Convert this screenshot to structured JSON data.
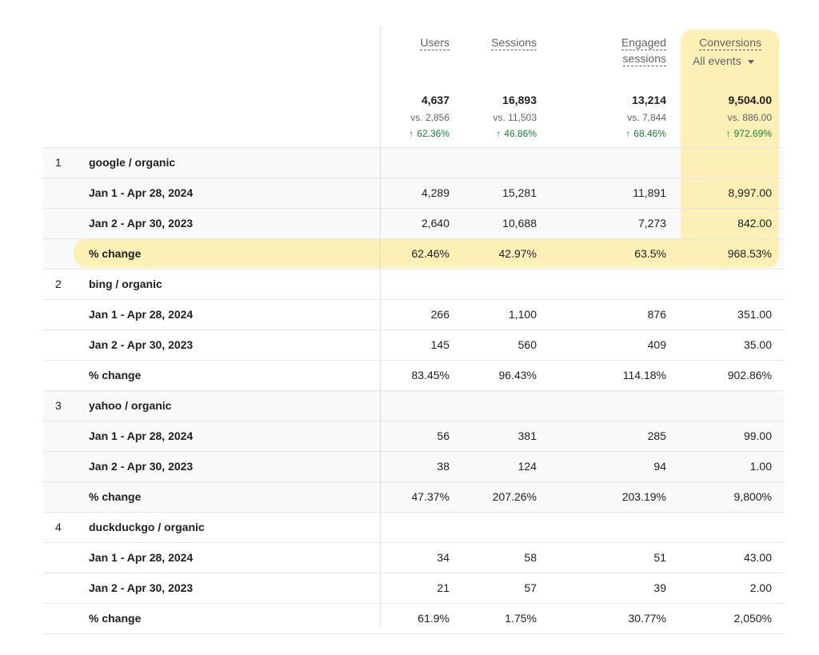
{
  "headers": {
    "users": "Users",
    "sessions": "Sessions",
    "engaged_line1": "Engaged",
    "engaged_line2": "sessions",
    "conversions": "Conversions",
    "event_filter": "All events"
  },
  "totals": {
    "users": {
      "value": "4,637",
      "vs": "vs. 2,856",
      "change": "62.36%"
    },
    "sessions": {
      "value": "16,893",
      "vs": "vs. 11,503",
      "change": "46.86%"
    },
    "engaged": {
      "value": "13,214",
      "vs": "vs. 7,844",
      "change": "68.46%"
    },
    "conversions": {
      "value": "9,504.00",
      "vs": "vs. 886.00",
      "change": "972.69%"
    }
  },
  "up_arrow": "↑",
  "highlight_color": "#fcf0b6",
  "positive_color": "#188038",
  "groups": [
    {
      "index": "1",
      "name": "google / organic",
      "shaded": true,
      "rows": [
        {
          "label": "Jan 1 - Apr 28, 2024",
          "users": "4,289",
          "sessions": "15,281",
          "engaged": "11,891",
          "conversions": "8,997.00"
        },
        {
          "label": "Jan 2 - Apr 30, 2023",
          "users": "2,640",
          "sessions": "10,688",
          "engaged": "7,273",
          "conversions": "842.00"
        },
        {
          "label": "% change",
          "users": "62.46%",
          "sessions": "42.97%",
          "engaged": "63.5%",
          "conversions": "968.53%"
        }
      ]
    },
    {
      "index": "2",
      "name": "bing / organic",
      "shaded": false,
      "rows": [
        {
          "label": "Jan 1 - Apr 28, 2024",
          "users": "266",
          "sessions": "1,100",
          "engaged": "876",
          "conversions": "351.00"
        },
        {
          "label": "Jan 2 - Apr 30, 2023",
          "users": "145",
          "sessions": "560",
          "engaged": "409",
          "conversions": "35.00"
        },
        {
          "label": "% change",
          "users": "83.45%",
          "sessions": "96.43%",
          "engaged": "114.18%",
          "conversions": "902.86%"
        }
      ]
    },
    {
      "index": "3",
      "name": "yahoo / organic",
      "shaded": true,
      "rows": [
        {
          "label": "Jan 1 - Apr 28, 2024",
          "users": "56",
          "sessions": "381",
          "engaged": "285",
          "conversions": "99.00"
        },
        {
          "label": "Jan 2 - Apr 30, 2023",
          "users": "38",
          "sessions": "124",
          "engaged": "94",
          "conversions": "1.00"
        },
        {
          "label": "% change",
          "users": "47.37%",
          "sessions": "207.26%",
          "engaged": "203.19%",
          "conversions": "9,800%"
        }
      ]
    },
    {
      "index": "4",
      "name": "duckduckgo / organic",
      "shaded": false,
      "rows": [
        {
          "label": "Jan 1 - Apr 28, 2024",
          "users": "34",
          "sessions": "58",
          "engaged": "51",
          "conversions": "43.00"
        },
        {
          "label": "Jan 2 - Apr 30, 2023",
          "users": "21",
          "sessions": "57",
          "engaged": "39",
          "conversions": "2.00"
        },
        {
          "label": "% change",
          "users": "61.9%",
          "sessions": "1.75%",
          "engaged": "30.77%",
          "conversions": "2,050%"
        }
      ]
    }
  ]
}
